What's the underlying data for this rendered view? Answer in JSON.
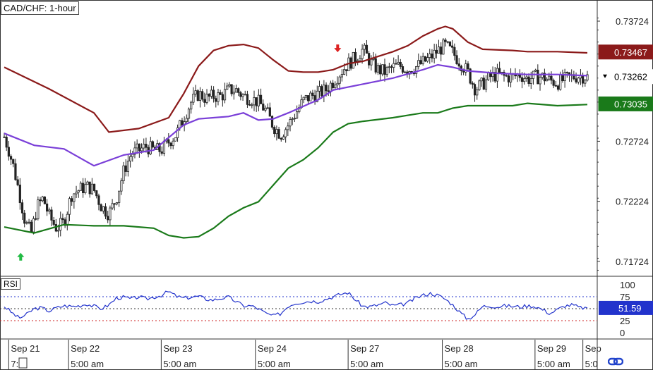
{
  "header": {
    "title": "CAD/CHF: 1-hour"
  },
  "rsi_label": "RSI",
  "colors": {
    "upper_band": "#8b1a1a",
    "middle_band": "#7a3fd8",
    "lower_band": "#1a7a1a",
    "candle": "#222222",
    "rsi_line": "#2233cc",
    "rsi_upper_level": "#2233cc",
    "rsi_lower_level": "#cc2222",
    "arrow_up": "#22bb44",
    "arrow_down": "#dd2222",
    "logo": "#2244cc"
  },
  "icons": {
    "buy_arrow": "green-up-arrow-icon",
    "sell_arrow": "red-down-arrow-icon",
    "logo": "chain-link-logo-icon"
  },
  "chart_data": [
    {
      "type": "candlestick",
      "title": "CAD/CHF: 1-hour",
      "ylim": [
        0.716,
        0.739
      ],
      "y_ticks": [
        "0.73724",
        "0.72724",
        "0.72224",
        "0.71724"
      ],
      "price_tags": [
        {
          "label": "0.73467",
          "value": 0.73467,
          "style": "upper"
        },
        {
          "label": "0.73262",
          "value": 0.73262,
          "style": "current"
        },
        {
          "label": "0.73035",
          "value": 0.73035,
          "style": "lower"
        }
      ],
      "x_labels": [
        "Sep 21",
        "Sep 22",
        "Sep 23",
        "Sep 24",
        "Sep 27",
        "Sep 28",
        "Sep 29",
        "Sep"
      ],
      "x_sublabels": [
        "7:0",
        "5:00 am",
        "5:00 am",
        "5:00 am",
        "5:00 am",
        "5:00 am",
        "5:00 am",
        "5:0"
      ],
      "grid": false,
      "close_series": [
        [
          0,
          0.7276
        ],
        [
          0.3,
          0.7265
        ],
        [
          0.6,
          0.7252
        ],
        [
          1,
          0.723
        ],
        [
          1.4,
          0.7205
        ],
        [
          1.8,
          0.7196
        ],
        [
          2.2,
          0.7218
        ],
        [
          2.6,
          0.7225
        ],
        [
          3,
          0.721
        ],
        [
          3.5,
          0.72
        ],
        [
          4,
          0.7205
        ],
        [
          4.5,
          0.7228
        ],
        [
          5,
          0.7232
        ],
        [
          5.5,
          0.7235
        ],
        [
          6,
          0.7232
        ],
        [
          6.5,
          0.7218
        ],
        [
          7,
          0.7212
        ],
        [
          7.5,
          0.7225
        ],
        [
          8,
          0.7248
        ],
        [
          8.5,
          0.7262
        ],
        [
          9,
          0.7265
        ],
        [
          9.5,
          0.7268
        ],
        [
          10,
          0.7265
        ],
        [
          10.5,
          0.7265
        ],
        [
          11,
          0.7272
        ],
        [
          11.5,
          0.7278
        ],
        [
          12,
          0.7292
        ],
        [
          12.5,
          0.7305
        ],
        [
          13,
          0.7312
        ],
        [
          13.5,
          0.7308
        ],
        [
          14,
          0.731
        ],
        [
          14.5,
          0.731
        ],
        [
          15,
          0.7315
        ],
        [
          15.5,
          0.7315
        ],
        [
          16,
          0.731
        ],
        [
          16.5,
          0.7308
        ],
        [
          17,
          0.7305
        ],
        [
          17.5,
          0.7298
        ],
        [
          18,
          0.7285
        ],
        [
          18.5,
          0.7278
        ],
        [
          19,
          0.7286
        ],
        [
          19.5,
          0.7296
        ],
        [
          20,
          0.7306
        ],
        [
          20.5,
          0.731
        ],
        [
          21,
          0.7312
        ],
        [
          21.5,
          0.7315
        ],
        [
          22,
          0.7322
        ],
        [
          22.5,
          0.733
        ],
        [
          23,
          0.7337
        ],
        [
          23.5,
          0.7342
        ],
        [
          24,
          0.7349
        ],
        [
          24.5,
          0.7338
        ],
        [
          25,
          0.7332
        ],
        [
          25.5,
          0.733
        ],
        [
          26,
          0.7334
        ],
        [
          26.5,
          0.7335
        ],
        [
          27,
          0.7332
        ],
        [
          27.5,
          0.7334
        ],
        [
          28,
          0.7338
        ],
        [
          28.5,
          0.7342
        ],
        [
          29,
          0.7348
        ],
        [
          29.5,
          0.7352
        ],
        [
          30,
          0.7346
        ],
        [
          30.5,
          0.7338
        ],
        [
          31,
          0.733
        ],
        [
          31.5,
          0.7316
        ],
        [
          32,
          0.732
        ],
        [
          32.5,
          0.7326
        ],
        [
          33,
          0.7328
        ],
        [
          33.5,
          0.7326
        ],
        [
          34,
          0.7326
        ],
        [
          34.5,
          0.7328
        ],
        [
          35,
          0.7324
        ],
        [
          35.5,
          0.7326
        ],
        [
          36,
          0.7326
        ],
        [
          36.5,
          0.7323
        ],
        [
          37,
          0.7321
        ],
        [
          37.5,
          0.7324
        ],
        [
          38,
          0.7326
        ],
        [
          38.5,
          0.7327
        ],
        [
          39,
          0.7326
        ]
      ],
      "bollinger": {
        "upper": [
          [
            0,
            0.7334
          ],
          [
            3,
            0.7316
          ],
          [
            6,
            0.7296
          ],
          [
            7,
            0.728
          ],
          [
            9,
            0.7283
          ],
          [
            11,
            0.7292
          ],
          [
            12,
            0.7312
          ],
          [
            13,
            0.7335
          ],
          [
            14,
            0.7348
          ],
          [
            15,
            0.7352
          ],
          [
            16,
            0.7353
          ],
          [
            17,
            0.735
          ],
          [
            18,
            0.734
          ],
          [
            19,
            0.7331
          ],
          [
            20,
            0.733
          ],
          [
            21,
            0.733
          ],
          [
            22,
            0.7332
          ],
          [
            23,
            0.7337
          ],
          [
            24,
            0.7339
          ],
          [
            25,
            0.7343
          ],
          [
            26,
            0.7347
          ],
          [
            27,
            0.7352
          ],
          [
            28,
            0.736
          ],
          [
            29,
            0.7366
          ],
          [
            29.5,
            0.7368
          ],
          [
            30,
            0.7366
          ],
          [
            31,
            0.7355
          ],
          [
            32,
            0.7349
          ],
          [
            34,
            0.7348
          ],
          [
            35,
            0.7347
          ],
          [
            37,
            0.7347
          ],
          [
            39,
            0.7346
          ]
        ],
        "middle": [
          [
            0,
            0.7279
          ],
          [
            2,
            0.7269
          ],
          [
            4,
            0.7266
          ],
          [
            6,
            0.7252
          ],
          [
            8,
            0.7261
          ],
          [
            10,
            0.7265
          ],
          [
            12,
            0.7286
          ],
          [
            13,
            0.7291
          ],
          [
            14,
            0.7292
          ],
          [
            15,
            0.7293
          ],
          [
            16,
            0.7296
          ],
          [
            17,
            0.729
          ],
          [
            18,
            0.7291
          ],
          [
            19,
            0.7296
          ],
          [
            21,
            0.7307
          ],
          [
            22,
            0.7315
          ],
          [
            24,
            0.732
          ],
          [
            26,
            0.7325
          ],
          [
            28,
            0.7332
          ],
          [
            29,
            0.7336
          ],
          [
            30,
            0.7334
          ],
          [
            31,
            0.7331
          ],
          [
            33,
            0.7329
          ],
          [
            35,
            0.7328
          ],
          [
            37,
            0.7328
          ],
          [
            39,
            0.7327
          ]
        ],
        "lower": [
          [
            0,
            0.7201
          ],
          [
            2,
            0.7196
          ],
          [
            4,
            0.7203
          ],
          [
            6,
            0.7202
          ],
          [
            8,
            0.7202
          ],
          [
            10,
            0.72
          ],
          [
            11,
            0.7194
          ],
          [
            12,
            0.7192
          ],
          [
            13,
            0.7193
          ],
          [
            14,
            0.72
          ],
          [
            15,
            0.721
          ],
          [
            16,
            0.7217
          ],
          [
            17,
            0.7222
          ],
          [
            18,
            0.7236
          ],
          [
            19,
            0.725
          ],
          [
            20,
            0.7257
          ],
          [
            21,
            0.7267
          ],
          [
            22,
            0.728
          ],
          [
            23,
            0.7287
          ],
          [
            24,
            0.7289
          ],
          [
            26,
            0.7292
          ],
          [
            27,
            0.7294
          ],
          [
            28,
            0.7296
          ],
          [
            29,
            0.7296
          ],
          [
            30,
            0.73
          ],
          [
            31,
            0.7302
          ],
          [
            32,
            0.7302
          ],
          [
            34,
            0.7302
          ],
          [
            35,
            0.7304
          ],
          [
            37,
            0.7302
          ],
          [
            39,
            0.7303
          ]
        ]
      },
      "signals": [
        {
          "type": "buy",
          "x": 1.1,
          "value": 0.7176
        },
        {
          "type": "sell",
          "x": 22.3,
          "value": 0.735
        }
      ]
    },
    {
      "type": "line",
      "title": "RSI",
      "ylim": [
        0,
        100
      ],
      "y_ticks": [
        "100",
        "75",
        "50",
        "25",
        "0"
      ],
      "levels": [
        {
          "value": 75,
          "style": "upper"
        },
        {
          "value": 50,
          "style": "mid"
        },
        {
          "value": 25,
          "style": "lower"
        }
      ],
      "current_tag": {
        "label": "51.59",
        "value": 51.59
      },
      "values": [
        [
          0,
          55
        ],
        [
          0.5,
          42
        ],
        [
          1,
          30
        ],
        [
          1.5,
          38
        ],
        [
          2,
          50
        ],
        [
          2.5,
          52
        ],
        [
          3,
          45
        ],
        [
          3.5,
          52
        ],
        [
          4,
          56
        ],
        [
          4.5,
          55
        ],
        [
          5,
          56
        ],
        [
          5.5,
          60
        ],
        [
          6,
          55
        ],
        [
          6.5,
          50
        ],
        [
          7,
          58
        ],
        [
          7.5,
          72
        ],
        [
          8,
          74
        ],
        [
          8.5,
          70
        ],
        [
          9,
          75
        ],
        [
          9.5,
          70
        ],
        [
          10,
          74
        ],
        [
          10.5,
          78
        ],
        [
          11,
          86
        ],
        [
          11.5,
          76
        ],
        [
          12,
          72
        ],
        [
          12.5,
          74
        ],
        [
          13,
          76
        ],
        [
          13.5,
          70
        ],
        [
          14,
          68
        ],
        [
          14.5,
          72
        ],
        [
          15,
          74
        ],
        [
          15.5,
          65
        ],
        [
          16,
          56
        ],
        [
          16.5,
          56
        ],
        [
          17,
          50
        ],
        [
          17.5,
          40
        ],
        [
          18,
          35
        ],
        [
          18.5,
          40
        ],
        [
          19,
          56
        ],
        [
          19.5,
          62
        ],
        [
          20,
          64
        ],
        [
          20.5,
          66
        ],
        [
          21,
          65
        ],
        [
          21.5,
          70
        ],
        [
          22,
          75
        ],
        [
          22.5,
          80
        ],
        [
          23,
          84
        ],
        [
          23.5,
          68
        ],
        [
          24,
          55
        ],
        [
          24.5,
          54
        ],
        [
          25,
          58
        ],
        [
          25.5,
          62
        ],
        [
          26,
          56
        ],
        [
          26.5,
          58
        ],
        [
          27,
          62
        ],
        [
          27.5,
          72
        ],
        [
          28,
          78
        ],
        [
          28.5,
          82
        ],
        [
          29,
          78
        ],
        [
          29.5,
          70
        ],
        [
          30,
          58
        ],
        [
          30.5,
          42
        ],
        [
          31,
          28
        ],
        [
          31.5,
          38
        ],
        [
          32,
          55
        ],
        [
          32.5,
          56
        ],
        [
          33,
          54
        ],
        [
          33.5,
          56
        ],
        [
          34,
          55
        ],
        [
          34.5,
          54
        ],
        [
          35,
          56
        ],
        [
          35.5,
          55
        ],
        [
          36,
          48
        ],
        [
          36.5,
          40
        ],
        [
          37,
          48
        ],
        [
          37.5,
          56
        ],
        [
          38,
          58
        ],
        [
          38.5,
          52
        ],
        [
          39,
          51.59
        ]
      ]
    }
  ]
}
